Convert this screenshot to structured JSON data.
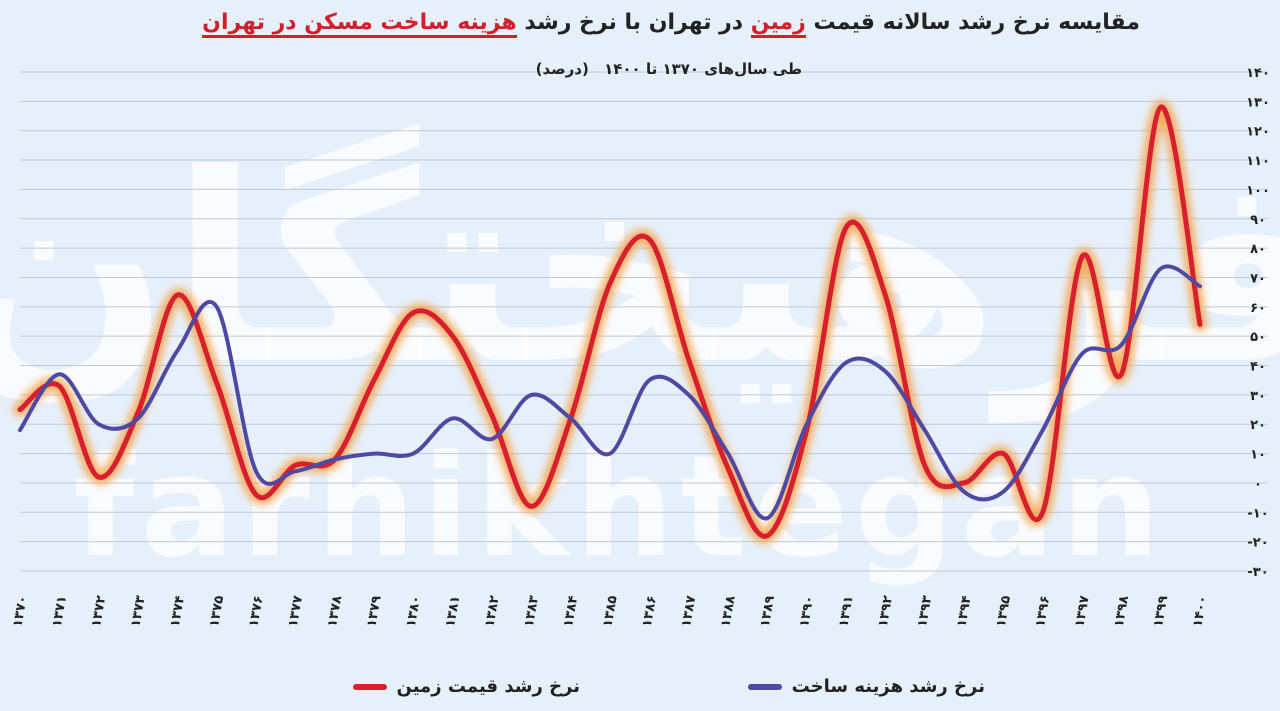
{
  "title": {
    "part1": "مقایسه نرخ رشد سالانه قیمت",
    "part2": "زمین",
    "part3": "در تهران با نرخ رشد",
    "part4": "هزینه ساخت مسکن در تهران"
  },
  "subtitle": {
    "period": "طی سال‌های ۱۳۷۰ تا ۱۴۰۰",
    "unit": "(درصد)"
  },
  "watermark": {
    "persian": "فرهیختگان",
    "latin": "farhikhtegan"
  },
  "colors": {
    "land": "#d71f2e",
    "land_glow": "#f6a24a",
    "construction": "#4e4aa3",
    "gridline": "#c3c9d2",
    "background": "#e6f0fa"
  },
  "chart_data": {
    "type": "line",
    "x": [
      "۱۳۷۰",
      "۱۳۷۱",
      "۱۳۷۲",
      "۱۳۷۳",
      "۱۳۷۴",
      "۱۳۷۵",
      "۱۳۷۶",
      "۱۳۷۷",
      "۱۳۷۸",
      "۱۳۷۹",
      "۱۳۸۰",
      "۱۳۸۱",
      "۱۳۸۲",
      "۱۳۸۳",
      "۱۳۸۴",
      "۱۳۸۵",
      "۱۳۸۶",
      "۱۳۸۷",
      "۱۳۸۸",
      "۱۳۸۹",
      "۱۳۹۰",
      "۱۳۹۱",
      "۱۳۹۲",
      "۱۳۹۳",
      "۱۳۹۴",
      "۱۳۹۵",
      "۱۳۹۶",
      "۱۳۹۷",
      "۱۳۹۸",
      "۱۳۹۹",
      "۱۴۰۰"
    ],
    "ylim": [
      -30,
      140
    ],
    "yticks": [
      -30,
      -20,
      -10,
      0,
      10,
      20,
      30,
      40,
      50,
      60,
      70,
      80,
      90,
      100,
      110,
      120,
      130,
      140
    ],
    "ytick_labels": [
      "-۳۰",
      "-۲۰",
      "-۱۰",
      "۰",
      "۱۰",
      "۲۰",
      "۳۰",
      "۴۰",
      "۵۰",
      "۶۰",
      "۷۰",
      "۸۰",
      "۹۰",
      "۱۰۰",
      "۱۱۰",
      "۱۲۰",
      "۱۳۰",
      "۱۴۰"
    ],
    "grid": true,
    "legend_position": "bottom",
    "series": [
      {
        "name": "نرخ رشد قیمت زمین",
        "values": [
          25,
          33,
          2,
          24,
          64,
          34,
          -4,
          6,
          8,
          35,
          58,
          50,
          23,
          -8,
          22,
          68,
          83,
          42,
          5,
          -18,
          18,
          87,
          64,
          6,
          0,
          10,
          -10,
          77,
          37,
          128,
          54
        ]
      },
      {
        "name": "نرخ رشد هزینه ساخت",
        "values": [
          18,
          37,
          20,
          22,
          45,
          60,
          4,
          4,
          8,
          10,
          10,
          22,
          15,
          30,
          22,
          10,
          35,
          30,
          10,
          -12,
          20,
          41,
          38,
          18,
          -3,
          -3,
          18,
          44,
          47,
          73,
          67
        ]
      }
    ]
  }
}
